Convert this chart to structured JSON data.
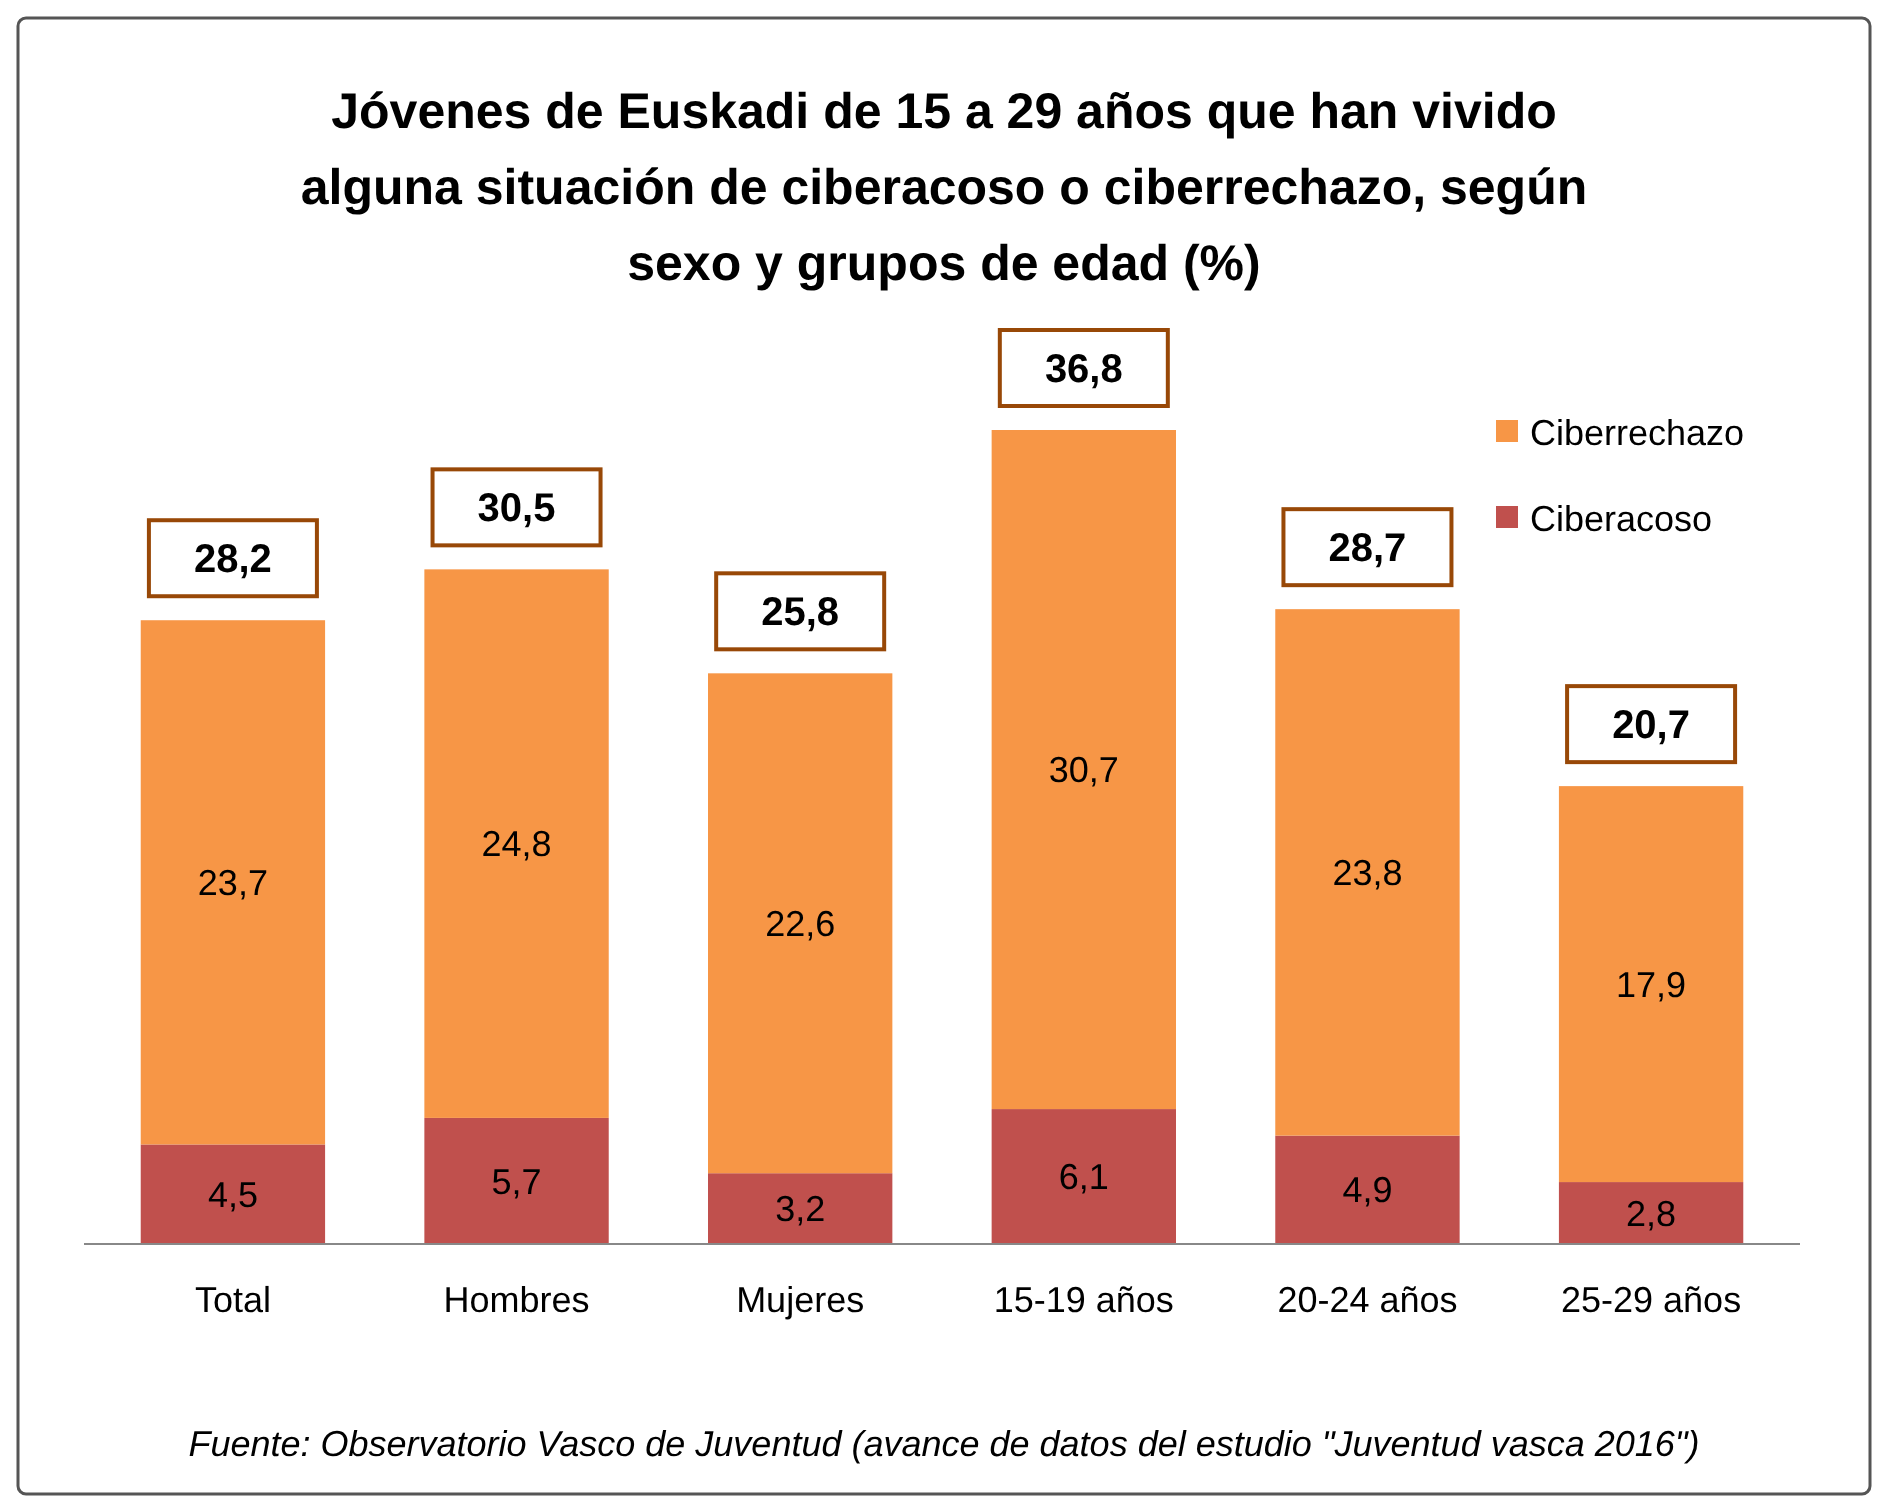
{
  "chart_data": {
    "type": "bar",
    "title": "Jóvenes de Euskadi de 15 a 29 años que han vivido alguna situación de ciberacoso o ciberrechazo, según sexo y grupos de edad (%)",
    "categories": [
      "Total",
      "Hombres",
      "Mujeres",
      "15-19 años",
      "20-24 años",
      "25-29 años"
    ],
    "stacked": true,
    "series": [
      {
        "name": "Ciberacoso",
        "color": "#c0504d",
        "values": [
          4.5,
          5.7,
          3.2,
          6.1,
          4.9,
          2.8
        ],
        "value_labels": [
          "4,5",
          "5,7",
          "3,2",
          "6,1",
          "4,9",
          "2,8"
        ]
      },
      {
        "name": "Ciberrechazo",
        "color": "#f79646",
        "values": [
          23.7,
          24.8,
          22.6,
          30.7,
          23.8,
          17.9
        ],
        "value_labels": [
          "23,7",
          "24,8",
          "22,6",
          "30,7",
          "23,8",
          "17,9"
        ]
      }
    ],
    "totals": [
      "28,2",
      "30,5",
      "25,8",
      "36,8",
      "28,7",
      "20,7"
    ],
    "legend": "top right",
    "annotations": [
      "Fuente: Observatorio Vasco de Juventud (avance de datos del estudio \"Juventud vasca 2016\")"
    ]
  }
}
